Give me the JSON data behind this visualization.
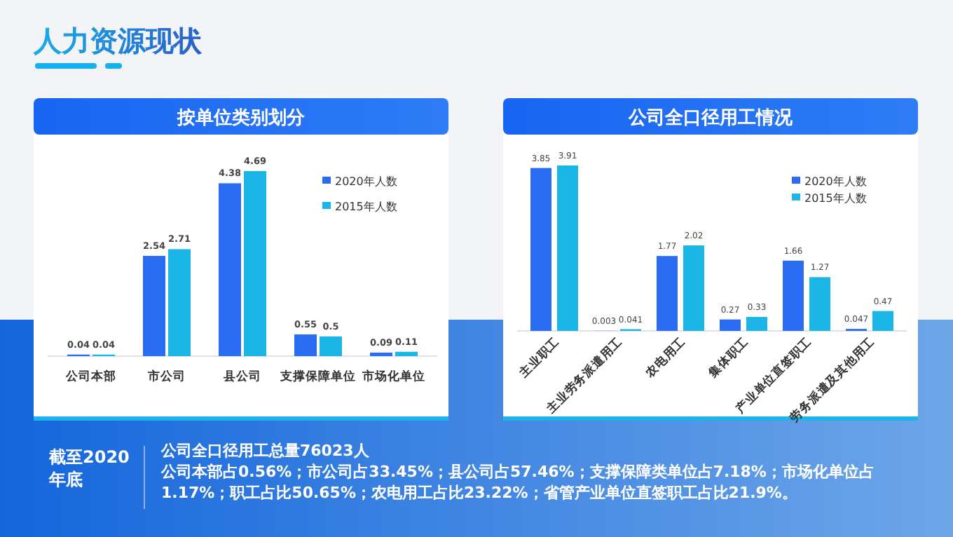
{
  "chart_data": [
    {
      "type": "bar",
      "title": "按单位类别划分",
      "categories": [
        "公司本部",
        "市公司",
        "县公司",
        "支撑保障单位",
        "市场化单位"
      ],
      "series": [
        {
          "name": "2020年人数",
          "color": "#2a6cf2",
          "values": [
            0.04,
            2.54,
            4.38,
            0.55,
            0.09
          ]
        },
        {
          "name": "2015年人数",
          "color": "#1cb6e6",
          "values": [
            0.04,
            2.71,
            4.69,
            0.5,
            0.11
          ]
        }
      ],
      "data_labels": true,
      "legend": "top right"
    },
    {
      "type": "bar",
      "title": "公司全口径用工情况",
      "categories": [
        "主业职工",
        "主业劳务派遣用工",
        "农电用工",
        "集体职工",
        "产业单位直签职工",
        "劳务派遣及其他用工"
      ],
      "series": [
        {
          "name": "2020年人数",
          "color": "#2a6cf2",
          "values": [
            3.85,
            0.003,
            1.77,
            0.27,
            1.66,
            0.047
          ]
        },
        {
          "name": "2015年人数",
          "color": "#1cb6e6",
          "values": [
            3.91,
            0.041,
            2.02,
            0.33,
            1.27,
            0.47
          ]
        }
      ],
      "data_labels": true,
      "legend": "top right"
    },
    {
      "type": "other",
      "title": "人力资源现状",
      "annotations": [
        "截至2020年底",
        "公司全口径用工总量76023人",
        "公司本部占0.56%；市公司占33.45%；县公司占57.46%；支撑保障类单位占7.18%；市场化单位占1.17%；职工占比50.65%；农电用工占比23.22%；省管产业单位直签职工占比21.9%。"
      ]
    }
  ]
}
